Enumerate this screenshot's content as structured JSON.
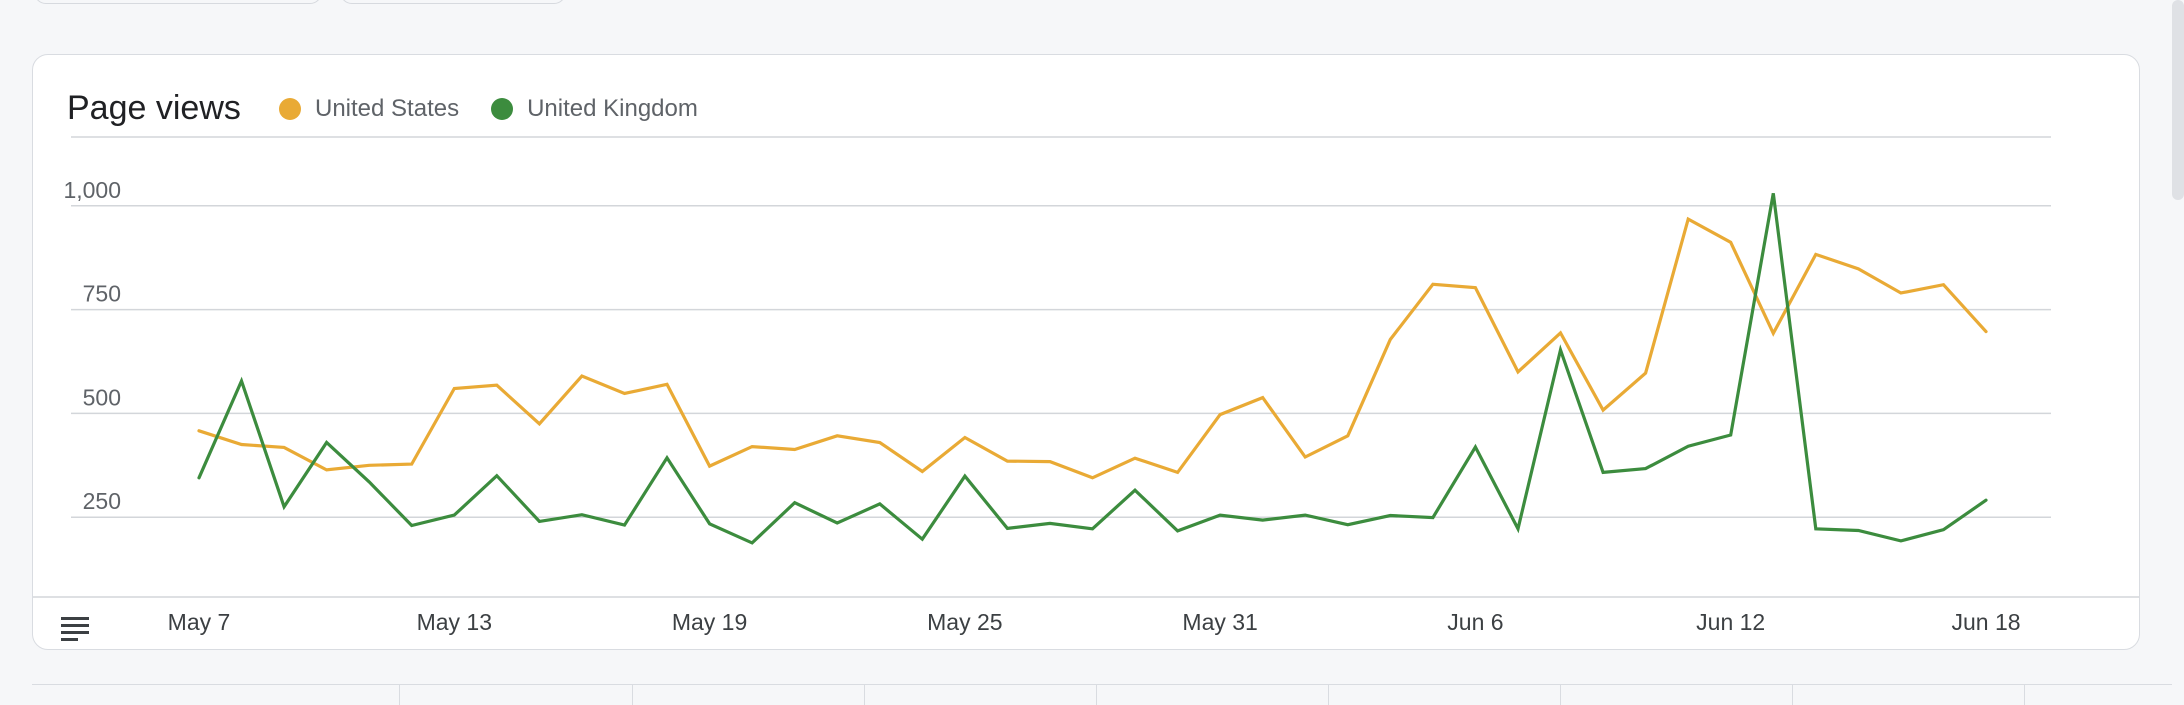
{
  "card": {
    "title": "Page views"
  },
  "legend": [
    {
      "label": "United States",
      "color": "#e9aa35"
    },
    {
      "label": "United Kingdom",
      "color": "#3c8c3e"
    }
  ],
  "icons": {
    "table_toggle": "table-icon"
  },
  "chart_data": {
    "type": "line",
    "title": "Page views",
    "xlabel": "",
    "ylabel": "",
    "ylim": [
      0,
      1050
    ],
    "yticks": [
      250,
      500,
      750,
      1000
    ],
    "ytick_labels": [
      "250",
      "500",
      "750",
      "1,000"
    ],
    "grid": true,
    "legend_position": "top-left",
    "x_dates": [
      "May 7",
      "May 8",
      "May 9",
      "May 10",
      "May 11",
      "May 12",
      "May 13",
      "May 14",
      "May 15",
      "May 16",
      "May 17",
      "May 18",
      "May 19",
      "May 20",
      "May 21",
      "May 22",
      "May 23",
      "May 24",
      "May 25",
      "May 26",
      "May 27",
      "May 28",
      "May 29",
      "May 30",
      "May 31",
      "Jun 1",
      "Jun 2",
      "Jun 3",
      "Jun 4",
      "Jun 5",
      "Jun 6",
      "Jun 7",
      "Jun 8",
      "Jun 9",
      "Jun 10",
      "Jun 11",
      "Jun 12",
      "Jun 13",
      "Jun 14",
      "Jun 15",
      "Jun 16",
      "Jun 17",
      "Jun 18"
    ],
    "x_tick_labels": [
      "May 7",
      "May 13",
      "May 19",
      "May 25",
      "May 31",
      "Jun 6",
      "Jun 12",
      "Jun 18"
    ],
    "x_tick_indices": [
      0,
      6,
      12,
      18,
      24,
      30,
      36,
      42
    ],
    "series": [
      {
        "name": "United States",
        "color": "#e9aa35",
        "values": [
          458,
          425,
          418,
          364,
          375,
          378,
          560,
          568,
          475,
          590,
          548,
          570,
          373,
          420,
          413,
          446,
          430,
          360,
          442,
          385,
          384,
          345,
          392,
          358,
          497,
          538,
          395,
          446,
          678,
          811,
          803,
          600,
          694,
          508,
          597,
          968,
          912,
          693,
          883,
          848,
          790,
          810,
          697
        ]
      },
      {
        "name": "United Kingdom",
        "color": "#3c8c3e",
        "values": [
          345,
          578,
          275,
          430,
          335,
          230,
          255,
          350,
          240,
          256,
          231,
          393,
          234,
          188,
          285,
          236,
          282,
          197,
          349,
          223,
          235,
          222,
          315,
          217,
          255,
          243,
          255,
          232,
          254,
          249,
          419,
          222,
          653,
          358,
          367,
          421,
          448,
          1030,
          222,
          218,
          193,
          220,
          291
        ]
      }
    ]
  }
}
